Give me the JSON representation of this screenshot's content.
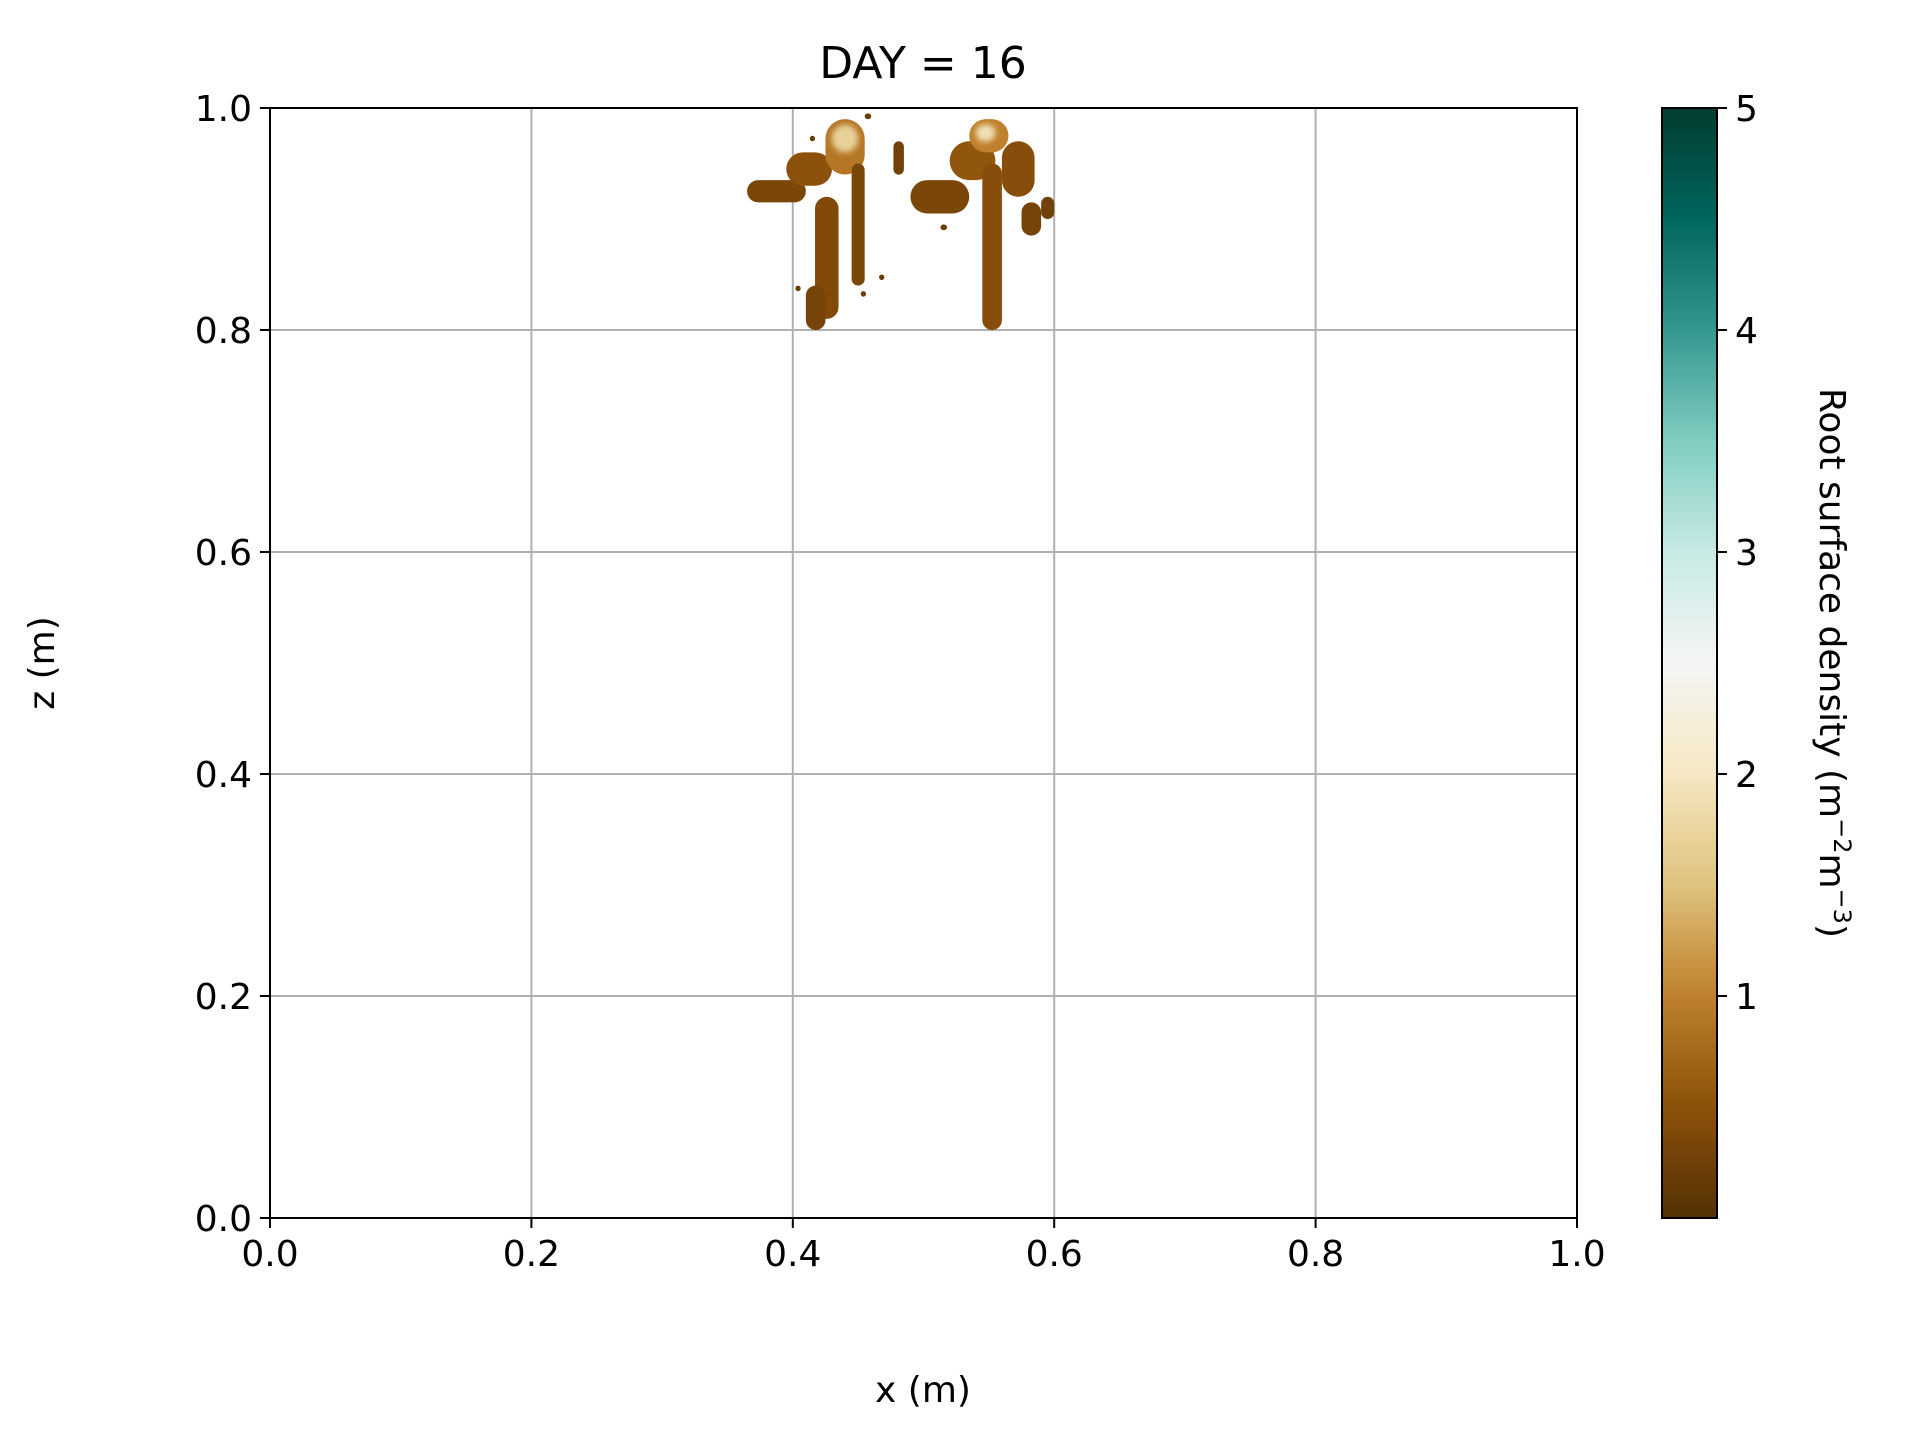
{
  "chart_data": {
    "type": "heatmap",
    "title": "DAY = 16",
    "xlabel": "x (m)",
    "ylabel": "z (m)",
    "xlim": [
      0.0,
      1.0
    ],
    "ylim": [
      0.0,
      1.0
    ],
    "xticks": [
      "0.0",
      "0.2",
      "0.4",
      "0.6",
      "0.8",
      "1.0"
    ],
    "yticks": [
      "0.0",
      "0.2",
      "0.4",
      "0.6",
      "0.8",
      "1.0"
    ],
    "grid": true,
    "colorbar": {
      "label_main": "Root surface density (m",
      "label_sup1": "−2",
      "label_mid": "m",
      "label_sup2": "−3",
      "label_end": ")",
      "ticks": [
        "1",
        "2",
        "3",
        "4",
        "5"
      ],
      "range": [
        0.0,
        5.0
      ],
      "colors": [
        "#543005",
        "#8c510a",
        "#bf812d",
        "#dfc27d",
        "#f6e8c3",
        "#f5f5f5",
        "#c7eae5",
        "#80cdc1",
        "#35978f",
        "#01665e",
        "#003c30"
      ]
    },
    "blobs": [
      {
        "x": [
          0.365,
          0.41
        ],
        "z": [
          0.915,
          0.935
        ],
        "value": 0.35
      },
      {
        "x": [
          0.395,
          0.43
        ],
        "z": [
          0.93,
          0.96
        ],
        "value": 0.5
      },
      {
        "x": [
          0.425,
          0.455
        ],
        "z": [
          0.94,
          0.99
        ],
        "value": 0.9
      },
      {
        "x": [
          0.43,
          0.45
        ],
        "z": [
          0.96,
          0.985
        ],
        "value": 1.7
      },
      {
        "x": [
          0.445,
          0.455
        ],
        "z": [
          0.84,
          0.95
        ],
        "value": 0.35
      },
      {
        "x": [
          0.417,
          0.435
        ],
        "z": [
          0.81,
          0.92
        ],
        "value": 0.4
      },
      {
        "x": [
          0.41,
          0.425
        ],
        "z": [
          0.8,
          0.84
        ],
        "value": 0.3
      },
      {
        "x": [
          0.477,
          0.485
        ],
        "z": [
          0.94,
          0.97
        ],
        "value": 0.25
      },
      {
        "x": [
          0.49,
          0.535
        ],
        "z": [
          0.905,
          0.935
        ],
        "value": 0.35
      },
      {
        "x": [
          0.52,
          0.555
        ],
        "z": [
          0.935,
          0.97
        ],
        "value": 0.55
      },
      {
        "x": [
          0.535,
          0.565
        ],
        "z": [
          0.96,
          0.99
        ],
        "value": 1.0
      },
      {
        "x": [
          0.54,
          0.555
        ],
        "z": [
          0.97,
          0.985
        ],
        "value": 1.9
      },
      {
        "x": [
          0.545,
          0.56
        ],
        "z": [
          0.8,
          0.95
        ],
        "value": 0.45
      },
      {
        "x": [
          0.56,
          0.585
        ],
        "z": [
          0.92,
          0.97
        ],
        "value": 0.45
      },
      {
        "x": [
          0.575,
          0.59
        ],
        "z": [
          0.885,
          0.915
        ],
        "value": 0.3
      },
      {
        "x": [
          0.59,
          0.6
        ],
        "z": [
          0.9,
          0.92
        ],
        "value": 0.25
      },
      {
        "x": [
          0.466,
          0.47
        ],
        "z": [
          0.845,
          0.85
        ],
        "value": 0.2
      },
      {
        "x": [
          0.452,
          0.456
        ],
        "z": [
          0.83,
          0.835
        ],
        "value": 0.2
      },
      {
        "x": [
          0.513,
          0.518
        ],
        "z": [
          0.89,
          0.895
        ],
        "value": 0.2
      },
      {
        "x": [
          0.402,
          0.406
        ],
        "z": [
          0.835,
          0.84
        ],
        "value": 0.2
      },
      {
        "x": [
          0.413,
          0.417
        ],
        "z": [
          0.97,
          0.975
        ],
        "value": 0.2
      },
      {
        "x": [
          0.455,
          0.46
        ],
        "z": [
          0.99,
          0.995
        ],
        "value": 0.2
      }
    ]
  }
}
